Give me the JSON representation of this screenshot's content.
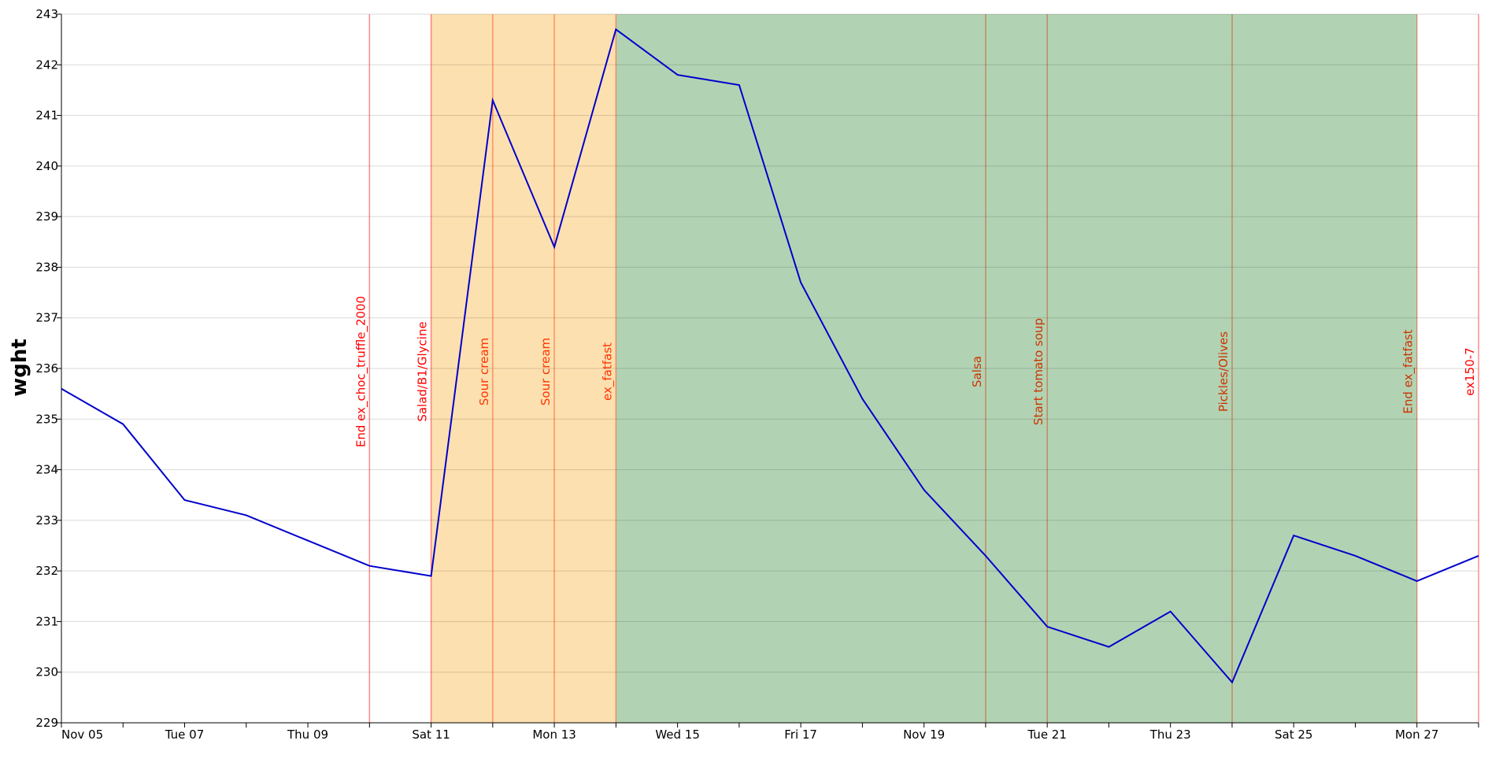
{
  "chart_data": {
    "type": "line",
    "title": "",
    "xlabel": "",
    "ylabel": "wght",
    "ylim": [
      229,
      243
    ],
    "y_ticks": [
      229,
      230,
      231,
      232,
      233,
      234,
      235,
      236,
      237,
      238,
      239,
      240,
      241,
      242,
      243
    ],
    "x_range": [
      "Nov 05",
      "Nov 28"
    ],
    "x_tick_labels": [
      "Nov 05",
      "Tue 07",
      "Thu 09",
      "Sat 11",
      "Mon 13",
      "Wed 15",
      "Fri 17",
      "Nov 19",
      "Tue 21",
      "Thu 23",
      "Sat 25",
      "Mon 27"
    ],
    "grid": "horizontal",
    "line_color": "#0000cc",
    "series": [
      {
        "x": [
          "Nov 05",
          "Nov 06",
          "Nov 07",
          "Nov 08",
          "Nov 09",
          "Nov 10",
          "Nov 11",
          "Nov 12",
          "Nov 13",
          "Nov 14",
          "Nov 15",
          "Nov 16",
          "Nov 17",
          "Nov 18",
          "Nov 19",
          "Nov 20",
          "Nov 21",
          "Nov 22",
          "Nov 23",
          "Nov 24",
          "Nov 25",
          "Nov 26",
          "Nov 27",
          "Nov 28"
        ],
        "values": [
          235.6,
          234.9,
          233.4,
          233.1,
          232.6,
          232.1,
          231.9,
          241.3,
          238.4,
          242.7,
          241.8,
          241.6,
          237.7,
          235.4,
          233.6,
          232.3,
          230.9,
          230.5,
          231.2,
          229.8,
          232.7,
          232.3,
          231.8,
          232.3
        ]
      }
    ],
    "shaded_regions": [
      {
        "start": "Nov 11",
        "end": "Nov 14",
        "color": "#fde0b0"
      },
      {
        "start": "Nov 14",
        "end": "Nov 27",
        "color": "#b2d3b3"
      }
    ],
    "annotations": [
      {
        "x": "Nov 10",
        "label": "End ex_choc_truffle_2000",
        "color": "#ff0000"
      },
      {
        "x": "Nov 11",
        "label": "Salad/B1/Glycine",
        "color": "#ff0000"
      },
      {
        "x": "Nov 12",
        "label": "Sour cream",
        "color": "#ff3300"
      },
      {
        "x": "Nov 13",
        "label": "Sour cream",
        "color": "#ff3300"
      },
      {
        "x": "Nov 14",
        "label": "ex_fatfast",
        "color": "#ff3300"
      },
      {
        "x": "Nov 20",
        "label": "Salsa",
        "color": "#cc3300"
      },
      {
        "x": "Nov 21",
        "label": "Start tomato soup",
        "color": "#cc3300"
      },
      {
        "x": "Nov 24",
        "label": "Pickles/Olives",
        "color": "#cc3300"
      },
      {
        "x": "Nov 27",
        "label": "End ex_fatfast",
        "color": "#cc3300"
      },
      {
        "x": "Nov 28",
        "label": "ex150-7",
        "color": "#ff0000"
      }
    ]
  }
}
